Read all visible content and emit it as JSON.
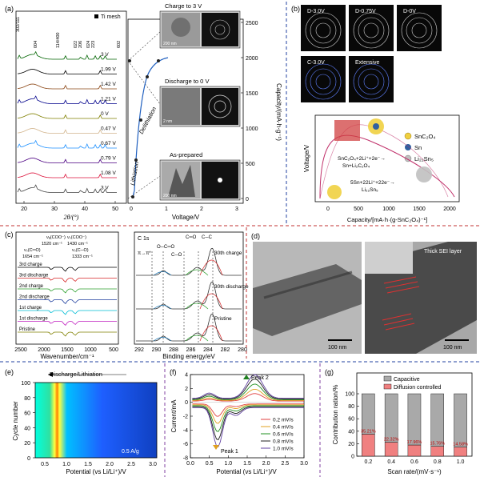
{
  "panels": {
    "a": {
      "label": "(a)",
      "legend": "Ti mesh",
      "xlabel": "2θ/(°)",
      "xticks": [
        "20",
        "30",
        "40",
        "50"
      ],
      "peaks": [
        "302/111",
        "004",
        "114/400",
        "022",
        "206",
        "024",
        "223",
        "602"
      ],
      "curve_labels": [
        "3 V",
        "1.99 V",
        "1.42 V",
        "1.21 V",
        "0 V",
        "0.47 V",
        "0.67 V",
        "0.79 V",
        "1.08 V",
        "3 V"
      ],
      "curve_colors": [
        "#006400",
        "#000000",
        "#8b4513",
        "#00008b",
        "#808000",
        "#d2b48c",
        "#1e90ff",
        "#4b0082",
        "#dc143c",
        "#444444"
      ],
      "vxlabel": "Voltage/V",
      "vxticks": [
        "0",
        "1",
        "2",
        "3"
      ],
      "vylabel": "Capacity/(mA·h·g⁻¹)",
      "vyticks": [
        "0",
        "500",
        "1000",
        "1500",
        "2000",
        "2500"
      ],
      "delith": "Delithiation",
      "lith": "Lithiation",
      "img_labels": [
        "Charge to 3 V",
        "Discharge to 0 V",
        "As-prepared"
      ],
      "scales": [
        "200 nm",
        "2 nm",
        "200 nm"
      ]
    },
    "b": {
      "label": "(b)",
      "saed": [
        "D-3.0V",
        "D-0.75V",
        "D-0V",
        "C-3.0V",
        "Extensive"
      ],
      "legend": [
        "SnC₂O₄",
        "Sn",
        "Li₂₂Sn₅"
      ],
      "legend_colors": [
        "#f0d040",
        "#3060a0",
        "#c0c0c0"
      ],
      "eq1": "SnC₂O₄+2Li⁺+2e⁻→",
      "eq1b": "Sn+Li₂C₂O₄",
      "eq2": "5Sn+22Li⁺+22e⁻→",
      "eq2b": "Li₂₂Sn₅",
      "xlabel": "Capacity/[mA·h·(g-SnC₂O₄)⁻¹]",
      "ylabel": "Voltage/V",
      "xticks": [
        "0",
        "500",
        "1000",
        "1500",
        "2000"
      ]
    },
    "c": {
      "label": "(c)",
      "peak_labels": [
        "νₐ(COO⁻)",
        "1520 cm⁻¹",
        "νₛ(COO⁻)",
        "1430 cm⁻¹",
        "νₛ(C═O)",
        "1654 cm⁻¹",
        "νₛ(C─O)",
        "1333 cm⁻¹"
      ],
      "rows": [
        "3rd charge",
        "3rd discharge",
        "2nd charge",
        "2nd discharge",
        "1st charge",
        "1st discharge",
        "Pristine"
      ],
      "row_colors": [
        "#000000",
        "#d62728",
        "#2ca02c",
        "#1f3f9f",
        "#00bcd4",
        "#c020c0",
        "#808000"
      ],
      "xlabel": "Wavenumber/cm⁻¹",
      "xticks": [
        "2500",
        "2000",
        "1500",
        "1000",
        "500"
      ],
      "xps_title": "C 1s",
      "xps_peaks": [
        "π→π*",
        "O─C═O",
        "C─O",
        "C═O",
        "C─C"
      ],
      "xps_rows": [
        "30th charge",
        "30th discharge",
        "Pristine"
      ],
      "xps_xlabel": "Binding energy/eV",
      "xps_xticks": [
        "292",
        "290",
        "288",
        "286",
        "284",
        "282",
        "280"
      ]
    },
    "d": {
      "label": "(d)",
      "sei": "Thick SEI layer",
      "scale1": "100 nm",
      "scale2": "100 nm"
    },
    "e": {
      "label": "(e)",
      "title": "Discharge/Lithiation",
      "ylabel": "Cycle number",
      "xlabel": "Potential (vs Li/Li⁺)/V",
      "xticks": [
        "0.5",
        "1.0",
        "1.5",
        "2.0",
        "2.5",
        "3.0"
      ],
      "yticks": [
        "0",
        "20",
        "40",
        "60",
        "80",
        "100"
      ],
      "rate": "0.5 A/g"
    },
    "f": {
      "label": "(f)",
      "ylabel": "Current/mA",
      "xlabel": "Potential (vs Li/Li⁺)/V",
      "peak1": "Peak 1",
      "peak2": "Peak 2"
    },
    "g": {
      "label": "(g)",
      "ylabel": "Contribution ration/%",
      "xlabel": "Scan rate/(mV·s⁻¹)",
      "legend": [
        "Capacitive",
        "Diffusion controlled"
      ],
      "colors": [
        "#a9a9a9",
        "#f08080"
      ],
      "yticks": [
        "0",
        "20",
        "40",
        "60",
        "80",
        "100"
      ]
    }
  },
  "chart_data": [
    {
      "type": "line",
      "panel": "f",
      "xlabel": "Potential (vs Li/Li⁺)/V",
      "ylabel": "Current/mA",
      "xlim": [
        0,
        3.0
      ],
      "ylim": [
        -8,
        4
      ],
      "xticks": [
        0,
        0.5,
        1.0,
        1.5,
        2.0,
        2.5,
        3.0
      ],
      "yticks": [
        -8,
        -6,
        -4,
        -2,
        0,
        2,
        4
      ],
      "series": [
        {
          "name": "0.2 mV/s",
          "color": "#e04040",
          "amp": 1.2
        },
        {
          "name": "0.4 mV/s",
          "color": "#e0a020",
          "amp": 1.8
        },
        {
          "name": "0.6 mV/s",
          "color": "#209020",
          "amp": 2.5
        },
        {
          "name": "0.8 mV/s",
          "color": "#202020",
          "amp": 3.2
        },
        {
          "name": "1.0 mV/s",
          "color": "#6040a0",
          "amp": 3.8
        }
      ]
    },
    {
      "type": "bar",
      "panel": "g",
      "categories": [
        "0.2",
        "0.4",
        "0.6",
        "0.8",
        "1.0"
      ],
      "series": [
        {
          "name": "Diffusion controlled",
          "values": [
            35.21,
            22.32,
            17.96,
            15.76,
            14.58
          ]
        },
        {
          "name": "Capacitive",
          "values": [
            64.79,
            77.68,
            82.04,
            84.24,
            85.42
          ]
        }
      ],
      "data_labels": [
        "35.21%",
        "22.32%",
        "17.96%",
        "15.76%",
        "14.58%"
      ],
      "xlabel": "Scan rate/(mV·s⁻¹)",
      "ylabel": "Contribution ration/%",
      "ylim": [
        0,
        100
      ]
    }
  ]
}
